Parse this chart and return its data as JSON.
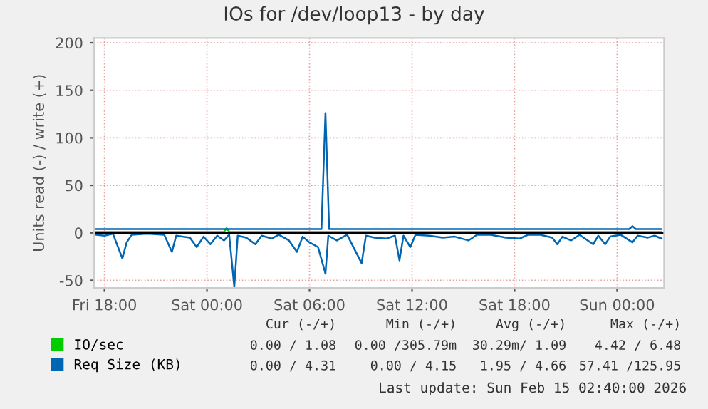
{
  "chart_data": {
    "type": "line",
    "title": "IOs for /dev/loop13 - by day",
    "ylabel": "Units read (-) / write (+)",
    "xlim": [
      "2026-02-13T17:24",
      "2026-02-15T02:45"
    ],
    "xticks": [
      {
        "value": "2026-02-13T18:00",
        "label": "Fri 18:00"
      },
      {
        "value": "2026-02-14T00:00",
        "label": "Sat 00:00"
      },
      {
        "value": "2026-02-14T06:00",
        "label": "Sat 06:00"
      },
      {
        "value": "2026-02-14T12:00",
        "label": "Sat 12:00"
      },
      {
        "value": "2026-02-14T18:00",
        "label": "Sat 18:00"
      },
      {
        "value": "2026-02-15T00:00",
        "label": "Sun 00:00"
      }
    ],
    "ylim": [
      -58,
      205
    ],
    "yticks": [
      -50,
      0,
      50,
      100,
      150,
      200
    ],
    "grid": true,
    "legend": "bottom left",
    "ref_lines": [
      {
        "axis": "y",
        "value": 0,
        "color": "#000000"
      }
    ],
    "series": [
      {
        "name": "IO/sec",
        "color": "#00cc00",
        "x": [
          "2026-02-13T17:30",
          "2026-02-14T01:00",
          "2026-02-14T01:09",
          "2026-02-14T01:18",
          "2026-02-15T02:36"
        ],
        "values": [
          1,
          1,
          5,
          1,
          1
        ]
      },
      {
        "name": "Req Size (KB)",
        "color": "#0066b3",
        "x": [
          "2026-02-13T17:30",
          "2026-02-14T06:42",
          "2026-02-14T06:56",
          "2026-02-14T07:09",
          "2026-02-15T00:42",
          "2026-02-15T00:54",
          "2026-02-15T01:06",
          "2026-02-15T02:36"
        ],
        "values": [
          4,
          4,
          126,
          4,
          4,
          7,
          4,
          4
        ]
      },
      {
        "color": "#0066b3",
        "x": [
          "2026-02-13T17:30",
          "2026-02-13T18:00",
          "2026-02-13T18:30",
          "2026-02-13T19:03",
          "2026-02-13T19:18",
          "2026-02-13T19:36",
          "2026-02-13T20:30",
          "2026-02-13T21:30",
          "2026-02-13T21:57",
          "2026-02-13T22:12",
          "2026-02-13T23:00",
          "2026-02-13T23:24",
          "2026-02-13T23:48",
          "2026-02-14T00:12",
          "2026-02-14T00:36",
          "2026-02-14T01:00",
          "2026-02-14T01:18",
          "2026-02-14T01:36",
          "2026-02-14T01:48",
          "2026-02-14T02:18",
          "2026-02-14T02:50",
          "2026-02-14T03:12",
          "2026-02-14T03:48",
          "2026-02-14T04:12",
          "2026-02-14T04:48",
          "2026-02-14T05:16",
          "2026-02-14T05:36",
          "2026-02-14T06:00",
          "2026-02-14T06:30",
          "2026-02-14T06:56",
          "2026-02-14T07:06",
          "2026-02-14T07:36",
          "2026-02-14T08:12",
          "2026-02-14T09:03",
          "2026-02-14T09:18",
          "2026-02-14T09:48",
          "2026-02-14T10:30",
          "2026-02-14T11:00",
          "2026-02-14T11:16",
          "2026-02-14T11:30",
          "2026-02-14T11:54",
          "2026-02-14T12:12",
          "2026-02-14T13:00",
          "2026-02-14T13:48",
          "2026-02-14T14:30",
          "2026-02-14T15:18",
          "2026-02-14T15:48",
          "2026-02-14T16:36",
          "2026-02-14T17:30",
          "2026-02-14T18:18",
          "2026-02-14T18:48",
          "2026-02-14T19:30",
          "2026-02-14T20:12",
          "2026-02-14T20:30",
          "2026-02-14T20:48",
          "2026-02-14T21:18",
          "2026-02-14T21:48",
          "2026-02-14T22:36",
          "2026-02-14T22:54",
          "2026-02-14T23:18",
          "2026-02-14T23:36",
          "2026-02-15T00:12",
          "2026-02-15T00:54",
          "2026-02-15T01:12",
          "2026-02-15T01:48",
          "2026-02-15T02:12",
          "2026-02-15T02:36"
        ],
        "values": [
          -2,
          -3,
          -1,
          -27,
          -10,
          -2,
          -1,
          -2,
          -20,
          -3,
          -5,
          -15,
          -4,
          -12,
          -3,
          -8,
          -2,
          -57,
          -3,
          -5,
          -12,
          -3,
          -6,
          -2,
          -8,
          -20,
          -4,
          -10,
          -15,
          -43,
          -3,
          -8,
          -2,
          -32,
          -3,
          -5,
          -6,
          -3,
          -29,
          -3,
          -15,
          -2,
          -3,
          -5,
          -4,
          -8,
          -2,
          -2,
          -5,
          -6,
          -2,
          -2,
          -5,
          -12,
          -4,
          -8,
          -2,
          -12,
          -3,
          -12,
          -4,
          -2,
          -10,
          -3,
          -5,
          -3,
          -6
        ]
      }
    ],
    "annotations": [
      "Cur (-/+)",
      "Min (-/+)",
      "Avg (-/+)",
      "Max (-/+)",
      "0.00 / 1.08",
      "0.00 /305.79m",
      "30.29m/ 1.09",
      "4.42 / 6.48",
      "0.00 / 4.31",
      "0.00 / 4.15",
      "1.95 / 4.66",
      "57.41 /125.95",
      "Last update: Sun Feb 15 02:40:00 2026"
    ]
  }
}
